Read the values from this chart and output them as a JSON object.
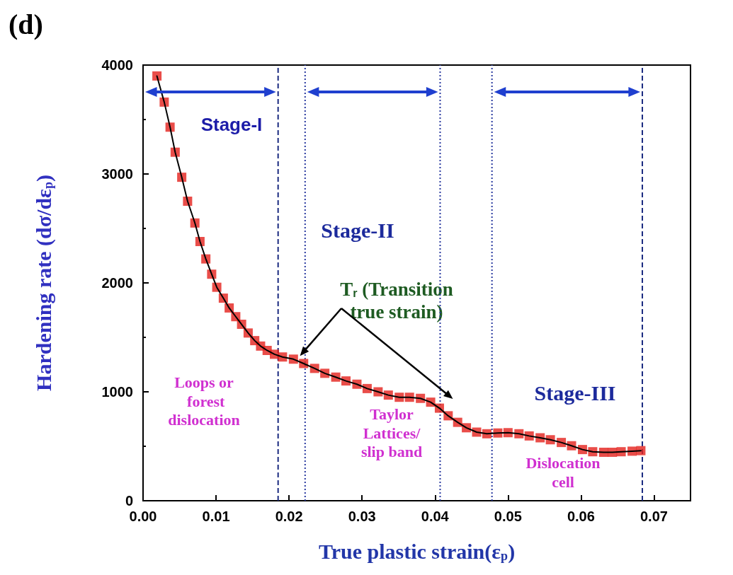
{
  "chart_data": {
    "type": "line",
    "xlabel": "True plastic strain(ε$_{p}$)",
    "ylabel": "Hardening rate (dσ/dε$_{p}$)",
    "x": [
      0.0019,
      0.0029,
      0.0037,
      0.0044,
      0.0053,
      0.0061,
      0.0071,
      0.0078,
      0.0086,
      0.0094,
      0.0101,
      0.011,
      0.0118,
      0.0127,
      0.0135,
      0.0144,
      0.0153,
      0.0161,
      0.017,
      0.018,
      0.0191,
      0.0206,
      0.022,
      0.0235,
      0.0249,
      0.0264,
      0.0278,
      0.0293,
      0.0307,
      0.0322,
      0.0336,
      0.0351,
      0.0365,
      0.038,
      0.0394,
      0.0406,
      0.0418,
      0.0431,
      0.0443,
      0.0457,
      0.0471,
      0.0486,
      0.05,
      0.0515,
      0.0529,
      0.0544,
      0.0558,
      0.0573,
      0.0587,
      0.0602,
      0.0616,
      0.0631,
      0.0643,
      0.0655,
      0.067,
      0.0682
    ],
    "series": [
      {
        "type": "scatter",
        "color": "#e3201b",
        "marker": "square",
        "values": [
          3900,
          3660,
          3430,
          3200,
          2970,
          2750,
          2550,
          2380,
          2220,
          2080,
          1960,
          1860,
          1770,
          1690,
          1620,
          1540,
          1470,
          1420,
          1380,
          1345,
          1320,
          1300,
          1260,
          1215,
          1170,
          1135,
          1100,
          1070,
          1030,
          1000,
          970,
          950,
          950,
          940,
          905,
          850,
          780,
          720,
          670,
          630,
          615,
          622,
          625,
          615,
          595,
          578,
          560,
          535,
          505,
          470,
          450,
          445,
          445,
          450,
          455,
          460
        ]
      },
      {
        "type": "line",
        "color": "#000000",
        "marker": "none",
        "values": [
          3900,
          3660,
          3430,
          3200,
          2970,
          2750,
          2550,
          2380,
          2220,
          2080,
          1960,
          1860,
          1770,
          1690,
          1620,
          1540,
          1470,
          1420,
          1380,
          1345,
          1320,
          1300,
          1260,
          1215,
          1170,
          1135,
          1100,
          1070,
          1030,
          1000,
          970,
          950,
          950,
          940,
          905,
          850,
          780,
          720,
          670,
          630,
          615,
          622,
          625,
          615,
          595,
          578,
          560,
          535,
          505,
          470,
          450,
          445,
          445,
          450,
          455,
          460
        ]
      }
    ],
    "xlim": [
      0,
      0.075
    ],
    "xticks": [
      {
        "value": 0,
        "label": "0.00"
      },
      {
        "value": 0.01,
        "label": "0.01"
      },
      {
        "value": 0.02,
        "label": "0.02"
      },
      {
        "value": 0.03,
        "label": "0.03"
      },
      {
        "value": 0.04,
        "label": "0.04"
      },
      {
        "value": 0.05,
        "label": "0.05"
      },
      {
        "value": 0.06,
        "label": "0.06"
      },
      {
        "value": 0.07,
        "label": "0.07"
      }
    ],
    "ylim": [
      0,
      4000
    ],
    "yticks": [
      0,
      1000,
      2000,
      3000,
      4000
    ],
    "ref_lines": [
      {
        "axis": "x",
        "value": 0.0185,
        "color": "#1a2a80",
        "line_style": "dashed"
      },
      {
        "axis": "x",
        "value": 0.0222,
        "color": "#2a3aa0",
        "line_style": "dotted"
      },
      {
        "axis": "x",
        "value": 0.0407,
        "color": "#2a3aa0",
        "line_style": "dotted"
      },
      {
        "axis": "x",
        "value": 0.0478,
        "color": "#2a3aa0",
        "line_style": "dotted"
      },
      {
        "axis": "x",
        "value": 0.0684,
        "color": "#1a2a80",
        "line_style": "dashed"
      }
    ],
    "annotations": [
      "(d)",
      "Stage-I",
      "Stage-II",
      {
        "text": "T$_{r}$ (Transition\ntrue strain)",
        "x": 0.0215,
        "y": 1330
      },
      "Stage-III",
      "Loops or\n forest\ndislocation",
      "Taylor\nLattices/\nslip band",
      "Dislocation\ncell"
    ]
  }
}
